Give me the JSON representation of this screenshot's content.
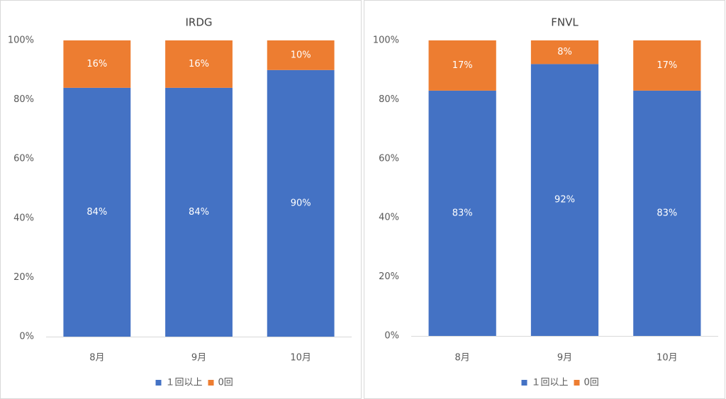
{
  "chart_data": [
    {
      "type": "bar",
      "stacked": true,
      "title": "IRDG",
      "categories": [
        "8月",
        "9月",
        "10月"
      ],
      "series": [
        {
          "name": "１回以上",
          "values": [
            84,
            84,
            90
          ],
          "labels": [
            "84%",
            "84%",
            "90%"
          ],
          "color": "#4472C4"
        },
        {
          "name": "0回",
          "values": [
            16,
            16,
            10
          ],
          "labels": [
            "16%",
            "16%",
            "10%"
          ],
          "color": "#ED7D31"
        }
      ],
      "ylim": [
        0,
        100
      ],
      "yticks": [
        0,
        20,
        40,
        60,
        80,
        100
      ],
      "ytick_labels": [
        "0%",
        "20%",
        "40%",
        "60%",
        "80%",
        "100%"
      ],
      "legend": "bottom"
    },
    {
      "type": "bar",
      "stacked": true,
      "title": "FNVL",
      "categories": [
        "8月",
        "9月",
        "10月"
      ],
      "series": [
        {
          "name": "１回以上",
          "values": [
            83,
            92,
            83
          ],
          "labels": [
            "83%",
            "92%",
            "83%"
          ],
          "color": "#4472C4"
        },
        {
          "name": "0回",
          "values": [
            17,
            8,
            17
          ],
          "labels": [
            "17%",
            "8%",
            "17%"
          ],
          "color": "#ED7D31"
        }
      ],
      "ylim": [
        0,
        100
      ],
      "yticks": [
        0,
        20,
        40,
        60,
        80,
        100
      ],
      "ytick_labels": [
        "0%",
        "20%",
        "40%",
        "60%",
        "80%",
        "100%"
      ],
      "legend": "bottom"
    }
  ]
}
